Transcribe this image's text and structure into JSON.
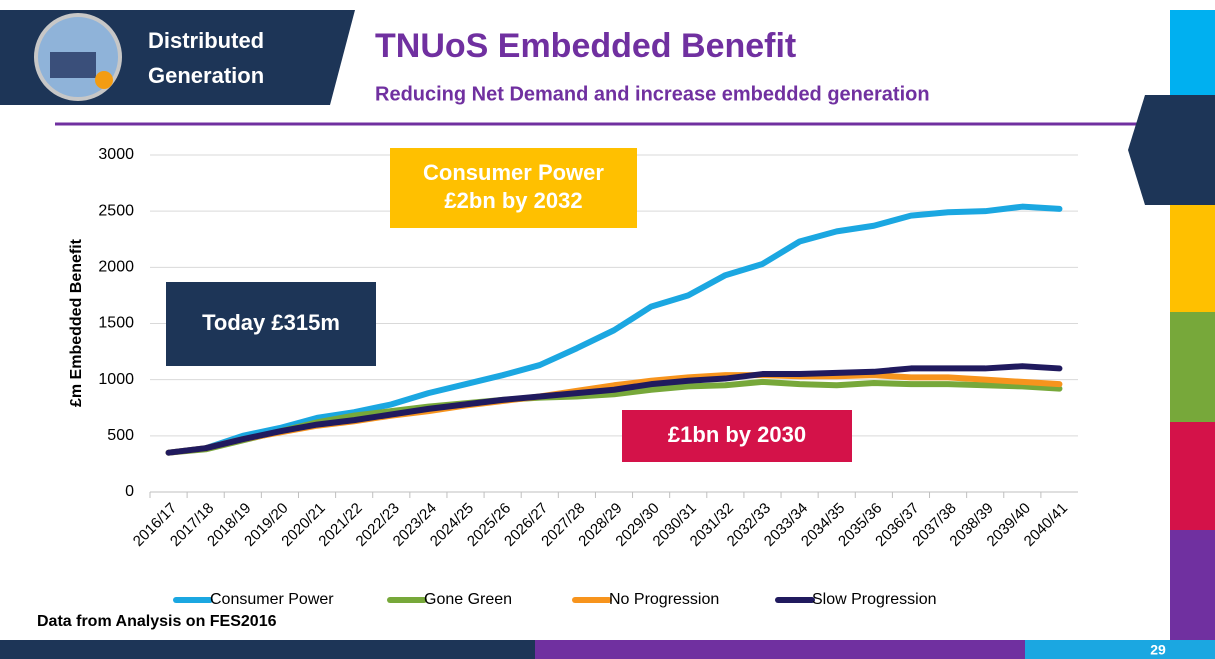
{
  "header": {
    "section": [
      "Distributed",
      "Generation"
    ],
    "title": "TNUoS Embedded Benefit",
    "subtitle": "Reducing Net Demand and increase embedded generation"
  },
  "chart_data": {
    "type": "line",
    "y_label": "£m Embedded Benefit",
    "categories": [
      "2016/17",
      "2017/18",
      "2018/19",
      "2019/20",
      "2020/21",
      "2021/22",
      "2022/23",
      "2023/24",
      "2024/25",
      "2025/26",
      "2026/27",
      "2027/28",
      "2028/29",
      "2029/30",
      "2030/31",
      "2031/32",
      "2032/33",
      "2033/34",
      "2034/35",
      "2035/36",
      "2036/37",
      "2037/38",
      "2038/39",
      "2039/40",
      "2040/41"
    ],
    "series": [
      {
        "name": "Consumer Power",
        "color": "#1ba7e1",
        "values": [
          350,
          390,
          500,
          570,
          660,
          710,
          780,
          880,
          960,
          1040,
          1130,
          1280,
          1440,
          1650,
          1750,
          1930,
          2030,
          2230,
          2320,
          2370,
          2460,
          2490,
          2500,
          2540,
          2520
        ]
      },
      {
        "name": "Gone Green",
        "color": "#77a83a",
        "values": [
          350,
          380,
          460,
          540,
          620,
          680,
          720,
          760,
          790,
          820,
          840,
          850,
          870,
          910,
          940,
          950,
          980,
          960,
          950,
          970,
          960,
          960,
          950,
          940,
          920
        ]
      },
      {
        "name": "No Progression",
        "color": "#f7941d",
        "values": [
          350,
          390,
          470,
          530,
          590,
          630,
          680,
          720,
          770,
          810,
          850,
          900,
          950,
          990,
          1020,
          1040,
          1040,
          1030,
          1030,
          1040,
          1020,
          1020,
          1000,
          980,
          960
        ]
      },
      {
        "name": "Slow Progression",
        "color": "#201a5e",
        "values": [
          350,
          390,
          470,
          540,
          600,
          640,
          690,
          740,
          780,
          820,
          850,
          880,
          910,
          960,
          990,
          1010,
          1050,
          1050,
          1060,
          1070,
          1100,
          1100,
          1100,
          1120,
          1100
        ]
      }
    ],
    "ylim": [
      0,
      3000
    ],
    "yticks": [
      0,
      500,
      1000,
      1500,
      2000,
      2500,
      3000
    ],
    "grid": true,
    "legend": "bottom",
    "annotations": [
      {
        "lines": [
          "Consumer Power",
          "£2bn by 2032"
        ],
        "color": "#ffc000"
      },
      {
        "lines": [
          "Today £315m"
        ],
        "color": "#1d3557"
      },
      {
        "lines": [
          "£1bn by 2030"
        ],
        "color": "#d41249"
      }
    ]
  },
  "footer": {
    "source": "Data from Analysis on FES2016",
    "page": "29"
  }
}
